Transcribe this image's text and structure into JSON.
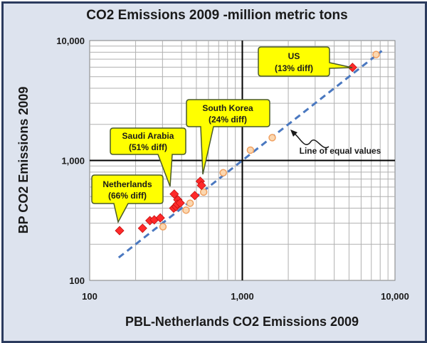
{
  "chart_data": {
    "type": "scatter",
    "title": "CO2 Emissions 2009 -million metric tons",
    "xlabel": "PBL-Netherlands CO2 Emissions 2009",
    "ylabel": "BP CO2 Emissions 2009",
    "xscale": "log",
    "yscale": "log",
    "xlim": [
      100,
      10000
    ],
    "ylim": [
      100,
      10000
    ],
    "xticks": [
      "100",
      "1,000",
      "10,000"
    ],
    "yticks": [
      "100",
      "1,000",
      "10,000"
    ],
    "grid": true,
    "colors": {
      "background": "#dde3ee",
      "border": "#2b3b5e",
      "diamond": "#ff2a2a",
      "circle": "#f0a060",
      "line": "#4a78c0",
      "callout": "#ffff00"
    },
    "series": [
      {
        "marker": "diamond",
        "points": [
          [
            157,
            260
          ],
          [
            222,
            272
          ],
          [
            248,
            315
          ],
          [
            265,
            320
          ],
          [
            290,
            332
          ],
          [
            358,
            525
          ],
          [
            355,
            400
          ],
          [
            368,
            412
          ],
          [
            378,
            470
          ],
          [
            375,
            432
          ],
          [
            392,
            442
          ],
          [
            488,
            510
          ],
          [
            530,
            670
          ],
          [
            540,
            620
          ],
          [
            5270,
            5970
          ]
        ]
      },
      {
        "marker": "circle",
        "points": [
          [
            302,
            280
          ],
          [
            428,
            385
          ],
          [
            455,
            440
          ],
          [
            558,
            545
          ],
          [
            750,
            790
          ],
          [
            1130,
            1220
          ],
          [
            1570,
            1550
          ],
          [
            7520,
            7650
          ]
        ]
      },
      {
        "marker": "line",
        "x": [
          155,
          8200
        ],
        "y": [
          155,
          8200
        ]
      }
    ],
    "annotations": [
      {
        "line1": "US",
        "line2": "(13% diff)"
      },
      {
        "line1": "South Korea",
        "line2": "(24% diff)"
      },
      {
        "line1": "Saudi Arabia",
        "line2": "(51% diff)"
      },
      {
        "line1": "Netherlands",
        "line2": "(66% diff)"
      },
      {
        "line1": "Line of equal values"
      }
    ]
  }
}
